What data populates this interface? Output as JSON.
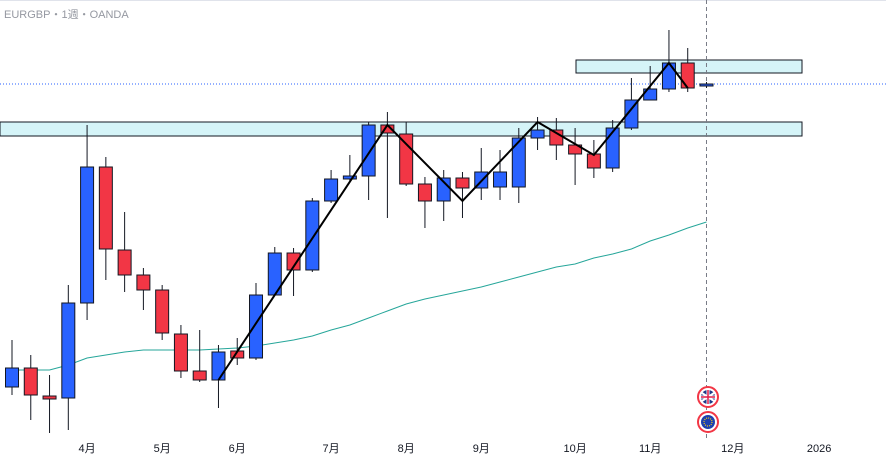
{
  "chart_data": {
    "type": "candlestick",
    "title": "EURGBP・1週・OANDA",
    "ylim": [
      0.824,
      0.89
    ],
    "xticks": [
      {
        "value": 4,
        "label": "4月"
      },
      {
        "value": 8,
        "label": "5月"
      },
      {
        "value": 12,
        "label": "6月"
      },
      {
        "value": 17,
        "label": "7月"
      },
      {
        "value": 21,
        "label": "8月"
      },
      {
        "value": 25,
        "label": "9月"
      },
      {
        "value": 30,
        "label": "10月"
      },
      {
        "value": 34,
        "label": "11月"
      },
      {
        "value": 38.4,
        "label": "12月"
      },
      {
        "value": 43,
        "label": "2026"
      }
    ],
    "up_color": "#2962ff",
    "down_color": "#f23645",
    "candles": {
      "open": [
        0.83195,
        0.8348,
        0.8306,
        0.8303,
        0.84455,
        0.86495,
        0.8525,
        0.84875,
        0.8465,
        0.8399,
        0.83435,
        0.833,
        0.83735,
        0.8363,
        0.84575,
        0.85205,
        0.8495,
        0.85985,
        0.86315,
        0.8636,
        0.87125,
        0.8699,
        0.8624,
        0.85985,
        0.8633,
        0.8618,
        0.86195,
        0.86195,
        0.8693,
        0.8705,
        0.86825,
        0.8669,
        0.8648,
        0.8708,
        0.875,
        0.87665,
        0.88055,
        0.8771
      ],
      "high": [
        0.839,
        0.83675,
        0.83375,
        0.84725,
        0.87125,
        0.86645,
        0.8582,
        0.8498,
        0.84725,
        0.84125,
        0.8405,
        0.83825,
        0.8393,
        0.84755,
        0.85295,
        0.8528,
        0.8603,
        0.8645,
        0.86675,
        0.8717,
        0.8732,
        0.8717,
        0.86345,
        0.8645,
        0.8642,
        0.8678,
        0.8675,
        0.8708,
        0.87245,
        0.8723,
        0.8708,
        0.869,
        0.872,
        0.8783,
        0.8801,
        0.8855,
        0.8828,
        0.8777
      ],
      "low": [
        0.83075,
        0.827,
        0.82505,
        0.8255,
        0.842,
        0.848,
        0.8462,
        0.8435,
        0.839,
        0.8333,
        0.8327,
        0.8288,
        0.83525,
        0.836,
        0.84575,
        0.8456,
        0.8492,
        0.85955,
        0.86285,
        0.86,
        0.8573,
        0.8621,
        0.8558,
        0.85685,
        0.8573,
        0.86,
        0.86,
        0.85955,
        0.8675,
        0.866,
        0.86225,
        0.8633,
        0.8642,
        0.8705,
        0.875,
        0.8762,
        0.8762,
        0.8768
      ],
      "close": [
        0.8348,
        0.83075,
        0.83015,
        0.84455,
        0.86495,
        0.85265,
        0.84875,
        0.8465,
        0.84005,
        0.83435,
        0.833,
        0.8372,
        0.8363,
        0.84575,
        0.85205,
        0.8495,
        0.85985,
        0.86315,
        0.8636,
        0.87125,
        0.87005,
        0.8624,
        0.85985,
        0.8633,
        0.8618,
        0.8642,
        0.8642,
        0.8693,
        0.8705,
        0.86825,
        0.8669,
        0.8648,
        0.8708,
        0.875,
        0.87665,
        0.88055,
        0.8768,
        0.8774
      ]
    },
    "ma": {
      "color": "#26a69a",
      "values": [
        0.8345,
        0.8345,
        0.8345,
        0.83525,
        0.8363,
        0.83675,
        0.8372,
        0.8375,
        0.8375,
        0.8375,
        0.8375,
        0.83765,
        0.8378,
        0.8381,
        0.83855,
        0.839,
        0.8396,
        0.8405,
        0.84125,
        0.8423,
        0.84335,
        0.8444,
        0.84515,
        0.84575,
        0.84635,
        0.84695,
        0.8477,
        0.84845,
        0.8492,
        0.84995,
        0.8504,
        0.8513,
        0.8519,
        0.85265,
        0.85385,
        0.85475,
        0.8558,
        0.8567
      ]
    },
    "zigzag": {
      "color": "#000000",
      "x": [
        11,
        20,
        24,
        28,
        31,
        35,
        36
      ],
      "values": [
        0.833,
        0.87125,
        0.85985,
        0.8717,
        0.86675,
        0.88055,
        0.8768
      ]
    },
    "zones": [
      {
        "from": 0.87905,
        "to": 0.881
      },
      {
        "from": 0.8696,
        "to": 0.8717
      }
    ],
    "zone_color": "#b2ebf2",
    "last_price": {
      "value": 0.8774,
      "color": "#2962ff"
    }
  }
}
